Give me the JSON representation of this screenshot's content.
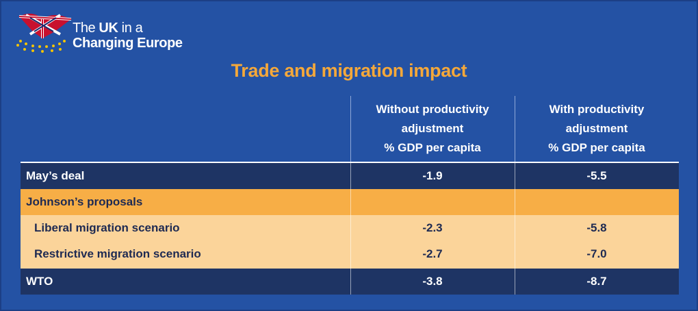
{
  "logo": {
    "line1_prefix": "The ",
    "line1_bold": "UK",
    "line1_suffix": " in a",
    "line2": "Changing Europe"
  },
  "chart_data": {
    "type": "table",
    "title": "Trade and migration impact",
    "columns": [
      "Without productivity adjustment % GDP per capita",
      "With productivity adjustment % GDP per capita"
    ],
    "column_lines": [
      [
        "Without productivity",
        "adjustment",
        "% GDP per capita"
      ],
      [
        "With productivity",
        "adjustment",
        "% GDP per capita"
      ]
    ],
    "rows": [
      {
        "label": "May’s deal",
        "values": [
          "-1.9",
          "-5.5"
        ]
      },
      {
        "label": "Johnson’s proposals",
        "values": [
          "",
          ""
        ]
      },
      {
        "label": "Liberal migration scenario",
        "values": [
          "-2.3",
          "-5.8"
        ]
      },
      {
        "label": "Restrictive migration scenario",
        "values": [
          "-2.7",
          "-7.0"
        ]
      },
      {
        "label": "WTO",
        "values": [
          "-3.8",
          "-8.7"
        ]
      }
    ]
  },
  "colors": {
    "background": "#2452a4",
    "title": "#f5a83a",
    "dark_row": "#1e3464",
    "orange_row": "#f7ae46",
    "light_row": "#fbd49a"
  }
}
